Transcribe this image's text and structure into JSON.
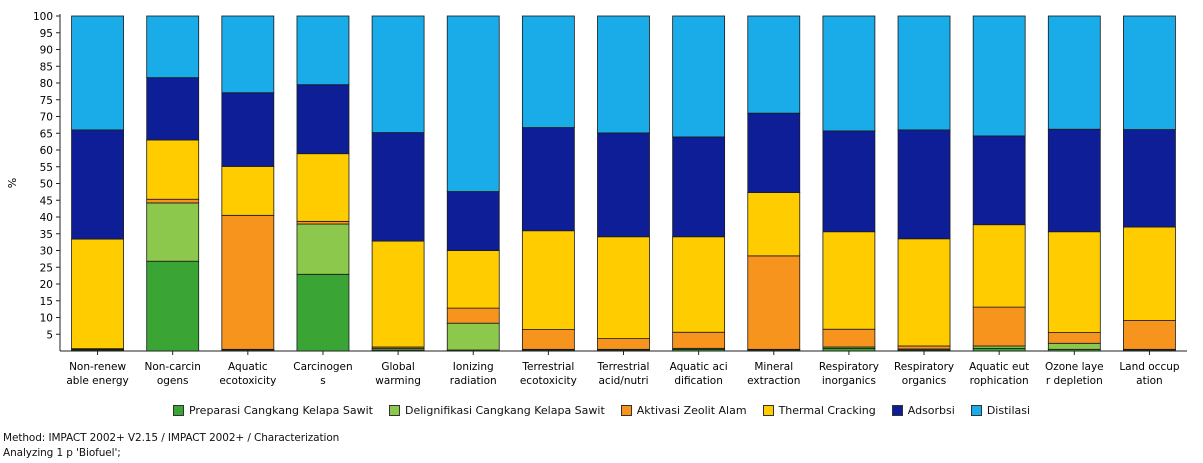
{
  "chart_data": {
    "type": "bar",
    "stacked": true,
    "ylabel": "%",
    "ylim": [
      0,
      100
    ],
    "yticks": [
      5,
      10,
      15,
      20,
      25,
      30,
      35,
      40,
      45,
      50,
      55,
      60,
      65,
      70,
      75,
      80,
      85,
      90,
      95,
      100
    ],
    "grid": false,
    "legend_position": "bottom",
    "categories": [
      [
        "Non-renew",
        "able energy"
      ],
      [
        "Non-carcin",
        "ogens"
      ],
      [
        "Aquatic",
        "ecotoxicity"
      ],
      [
        "Carcinogen",
        "s"
      ],
      [
        "Global",
        "warming"
      ],
      [
        "Ionizing",
        "radiation"
      ],
      [
        "Terrestrial",
        "ecotoxicity"
      ],
      [
        "Terrestrial",
        "acid/nutri"
      ],
      [
        "Aquatic aci",
        "dification"
      ],
      [
        "Mineral",
        "extraction"
      ],
      [
        "Respiratory",
        "inorganics"
      ],
      [
        "Respiratory",
        "organics"
      ],
      [
        "Aquatic eut",
        "rophication"
      ],
      [
        "Ozone laye",
        "r depletion"
      ],
      [
        "Land occup",
        "ation"
      ]
    ],
    "series": [
      {
        "name": "Preparasi Cangkang Kelapa Sawit",
        "color": "#3aa535",
        "values": [
          0.3,
          26.8,
          0.3,
          22.9,
          0.3,
          0.3,
          0.3,
          0.3,
          0.5,
          0.3,
          0.8,
          0.3,
          0.8,
          0.5,
          0.3
        ]
      },
      {
        "name": "Delignifikasi Cangkang Kelapa Sawit",
        "color": "#8cc84b",
        "values": [
          0.2,
          17.4,
          0.2,
          15.0,
          0.5,
          8.0,
          0.2,
          0.2,
          0.3,
          0.2,
          0.4,
          0.3,
          0.7,
          1.8,
          0.2
        ]
      },
      {
        "name": "Aktivasi Zeolit Alam",
        "color": "#f7941d",
        "values": [
          0.2,
          1.1,
          40.0,
          0.8,
          0.4,
          4.5,
          5.9,
          3.2,
          4.8,
          27.9,
          5.3,
          0.9,
          11.6,
          3.2,
          8.6
        ]
      },
      {
        "name": "Thermal Cracking",
        "color": "#ffcc00",
        "values": [
          32.7,
          17.7,
          14.6,
          20.2,
          31.6,
          17.2,
          29.5,
          30.4,
          28.5,
          18.9,
          29.1,
          32.0,
          24.6,
          30.1,
          27.9
        ]
      },
      {
        "name": "Adsorbsi",
        "color": "#0e1e96",
        "values": [
          32.6,
          18.6,
          22.0,
          20.6,
          32.4,
          17.6,
          30.8,
          31.0,
          29.8,
          23.7,
          30.1,
          32.5,
          26.5,
          30.6,
          29.1
        ]
      },
      {
        "name": "Distilasi",
        "color": "#1aace8",
        "values": [
          34.0,
          18.4,
          22.9,
          20.5,
          34.8,
          52.4,
          33.3,
          34.9,
          36.1,
          29.0,
          34.3,
          34.0,
          35.8,
          33.8,
          33.9
        ]
      }
    ]
  },
  "footer": {
    "method": "Method: IMPACT 2002+ V2.15 / IMPACT 2002+ / Characterization",
    "analyzing": "Analyzing 1 p 'Biofuel';"
  }
}
